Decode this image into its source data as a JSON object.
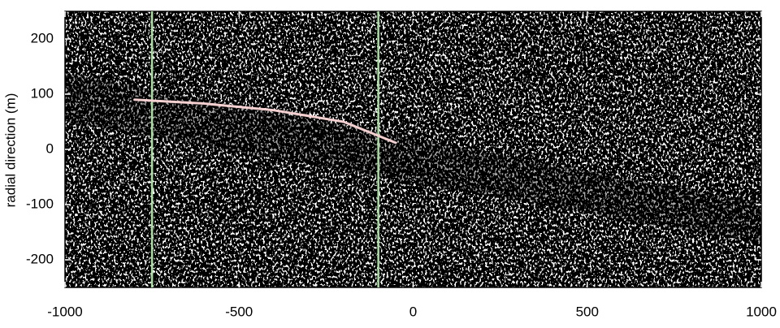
{
  "chart_data": {
    "type": "line",
    "ylabel": "radial direction (m)",
    "xlim": [
      -1000,
      1000
    ],
    "ylim": [
      -250,
      250
    ],
    "xticks": [
      -1000,
      -500,
      0,
      500,
      1000
    ],
    "yticks": [
      200,
      100,
      0,
      -100,
      -200
    ],
    "vlines": {
      "color": "#a8dca0",
      "values": [
        -750,
        -100
      ]
    },
    "series": [
      {
        "color": "#f4d0d0",
        "x": [
          -800,
          -600,
          -400,
          -200,
          -50
        ],
        "values": [
          90,
          83,
          71,
          50,
          12
        ]
      }
    ]
  }
}
